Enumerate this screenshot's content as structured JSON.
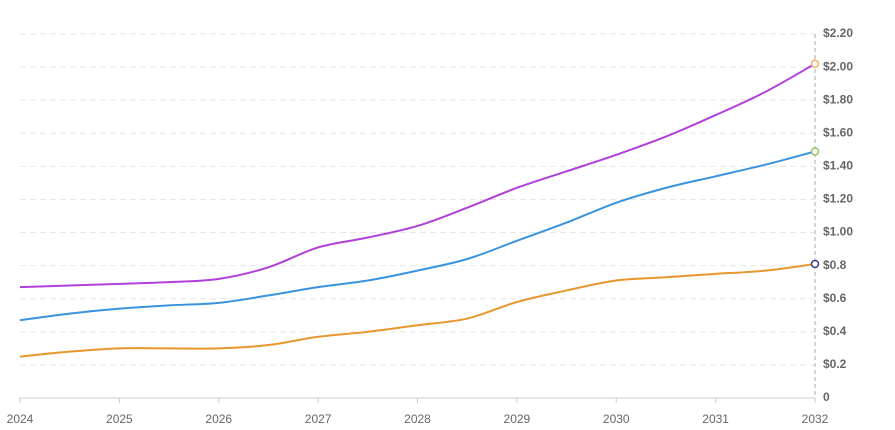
{
  "chart_data": {
    "type": "line",
    "x": [
      2024,
      2024.5,
      2025,
      2025.5,
      2026,
      2026.5,
      2027,
      2027.5,
      2028,
      2028.5,
      2029,
      2029.5,
      2030,
      2030.5,
      2031,
      2031.5,
      2032
    ],
    "xlim": [
      2024,
      2032
    ],
    "xticks": [
      2024,
      2025,
      2026,
      2027,
      2028,
      2029,
      2030,
      2031,
      2032
    ],
    "ylim": [
      0,
      2.2
    ],
    "yticks": [
      {
        "value": 0,
        "label": "0"
      },
      {
        "value": 0.2,
        "label": "$0.2"
      },
      {
        "value": 0.4,
        "label": "$0.4"
      },
      {
        "value": 0.6,
        "label": "$0.6"
      },
      {
        "value": 0.8,
        "label": "$0.8"
      },
      {
        "value": 1.0,
        "label": "$1.00"
      },
      {
        "value": 1.2,
        "label": "$1.20"
      },
      {
        "value": 1.4,
        "label": "$1.40"
      },
      {
        "value": 1.6,
        "label": "$1.60"
      },
      {
        "value": 1.8,
        "label": "$1.80"
      },
      {
        "value": 2.0,
        "label": "$2.00"
      },
      {
        "value": 2.2,
        "label": "$2.20"
      }
    ],
    "grid": true,
    "series": [
      {
        "color": "#b23fd9",
        "marker_color": "#f0b060",
        "values": [
          0.67,
          0.68,
          0.69,
          0.7,
          0.72,
          0.79,
          0.91,
          0.97,
          1.04,
          1.15,
          1.27,
          1.37,
          1.47,
          1.58,
          1.71,
          1.85,
          2.02
        ]
      },
      {
        "color": "#3a93dd",
        "marker_color": "#8fc462",
        "values": [
          0.47,
          0.51,
          0.54,
          0.56,
          0.575,
          0.62,
          0.67,
          0.71,
          0.77,
          0.84,
          0.95,
          1.06,
          1.18,
          1.27,
          1.34,
          1.41,
          1.49
        ]
      },
      {
        "color": "#e8962e",
        "marker_color": "#34418a",
        "values": [
          0.25,
          0.28,
          0.3,
          0.3,
          0.3,
          0.32,
          0.37,
          0.4,
          0.44,
          0.48,
          0.58,
          0.65,
          0.71,
          0.73,
          0.75,
          0.77,
          0.81
        ]
      }
    ]
  }
}
